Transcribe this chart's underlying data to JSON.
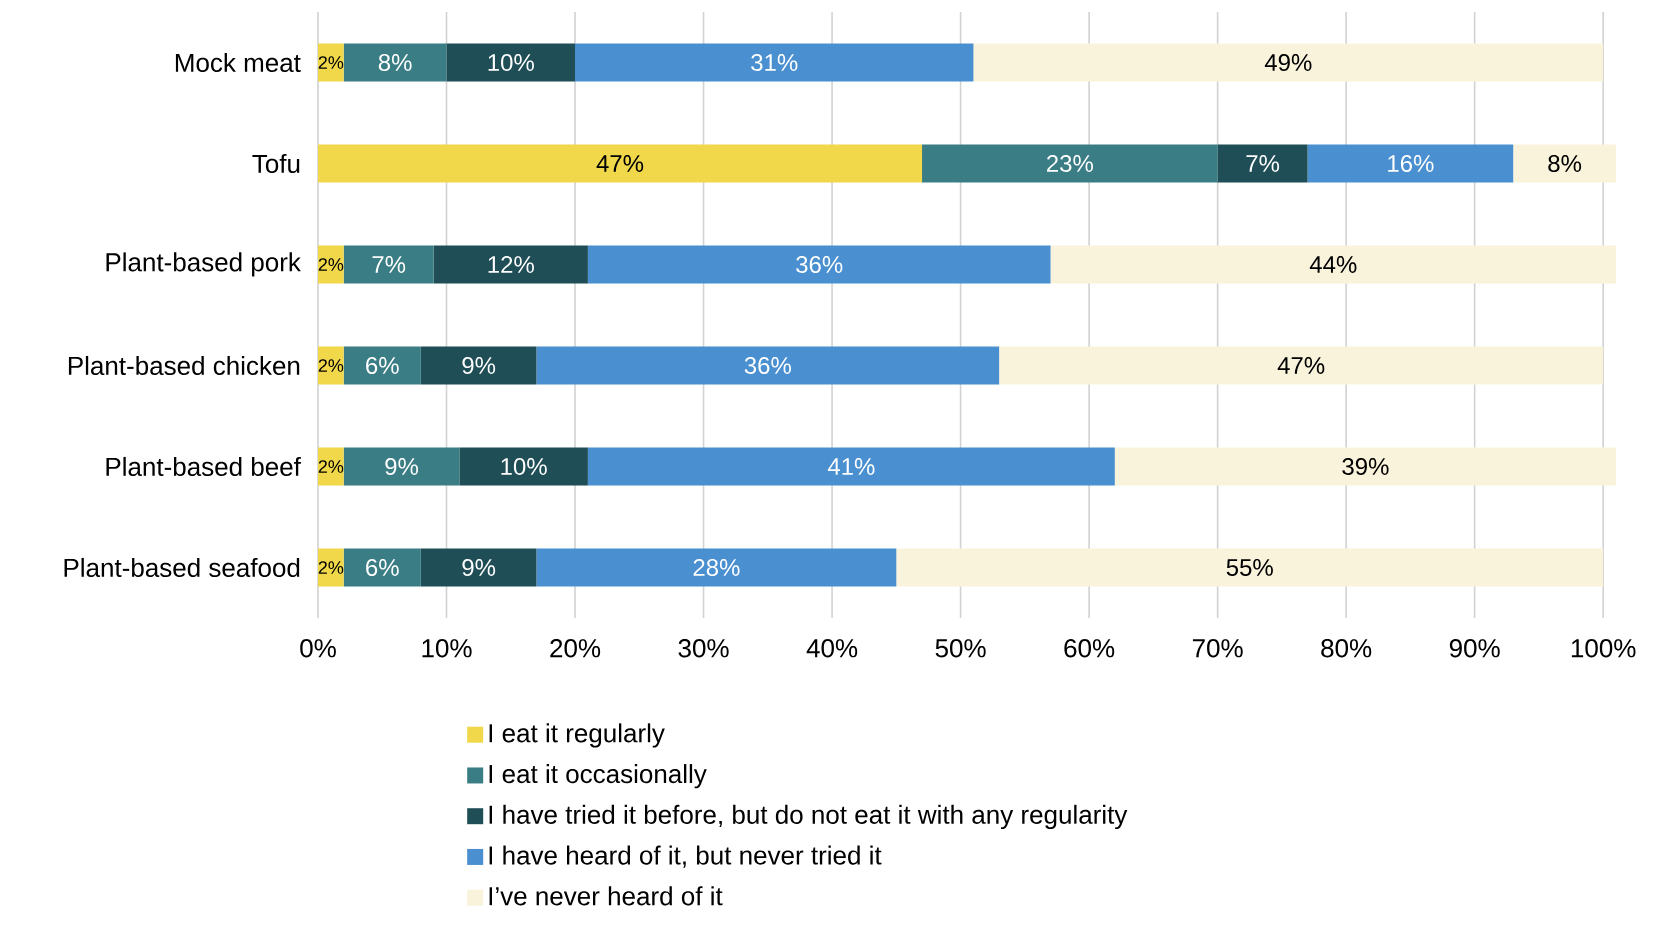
{
  "chart_data": {
    "type": "bar",
    "orientation": "horizontal",
    "stacked": true,
    "categories": [
      "Mock meat",
      "Tofu",
      "Plant-based pork",
      "Plant-based chicken",
      "Plant-based beef",
      "Plant-based seafood"
    ],
    "series": [
      {
        "name": "I eat it regularly",
        "color": "#f0d84a",
        "values": [
          2,
          47,
          2,
          2,
          2,
          2
        ],
        "value_labels": [
          "2%",
          "47%",
          "2%",
          "2%",
          "2%",
          "2%"
        ]
      },
      {
        "name": "I eat it occasionally",
        "color": "#3a7d85",
        "values": [
          8,
          23,
          7,
          6,
          9,
          6
        ],
        "value_labels": [
          "8%",
          "23%",
          "7%",
          "6%",
          "9%",
          "6%"
        ]
      },
      {
        "name": "I have tried it before, but do not eat it with any regularity",
        "color": "#1f4e57",
        "values": [
          10,
          7,
          12,
          9,
          10,
          9
        ],
        "value_labels": [
          "10%",
          "7%",
          "12%",
          "9%",
          "10%",
          "9%"
        ]
      },
      {
        "name": "I have heard of it, but never tried it",
        "color": "#4a8fd0",
        "values": [
          31,
          16,
          36,
          36,
          41,
          28
        ],
        "value_labels": [
          "31%",
          "16%",
          "36%",
          "36%",
          "41%",
          "28%"
        ]
      },
      {
        "name": "I’ve never heard of it",
        "color": "#faf3dc",
        "values": [
          49,
          8,
          44,
          47,
          39,
          55
        ],
        "value_labels": [
          "49%",
          "8%",
          "44%",
          "47%",
          "39%",
          "55%"
        ]
      }
    ],
    "xlim": [
      0,
      101
    ],
    "xticks": [
      {
        "value": 0,
        "label": "0%"
      },
      {
        "value": 10,
        "label": "10%"
      },
      {
        "value": 20,
        "label": "20%"
      },
      {
        "value": 30,
        "label": "30%"
      },
      {
        "value": 40,
        "label": "40%"
      },
      {
        "value": 50,
        "label": "50%"
      },
      {
        "value": 60,
        "label": "60%"
      },
      {
        "value": 70,
        "label": "70%"
      },
      {
        "value": 80,
        "label": "80%"
      },
      {
        "value": 90,
        "label": "90%"
      },
      {
        "value": 100,
        "label": "100%"
      }
    ],
    "grid": "x",
    "legend": "bottom"
  }
}
